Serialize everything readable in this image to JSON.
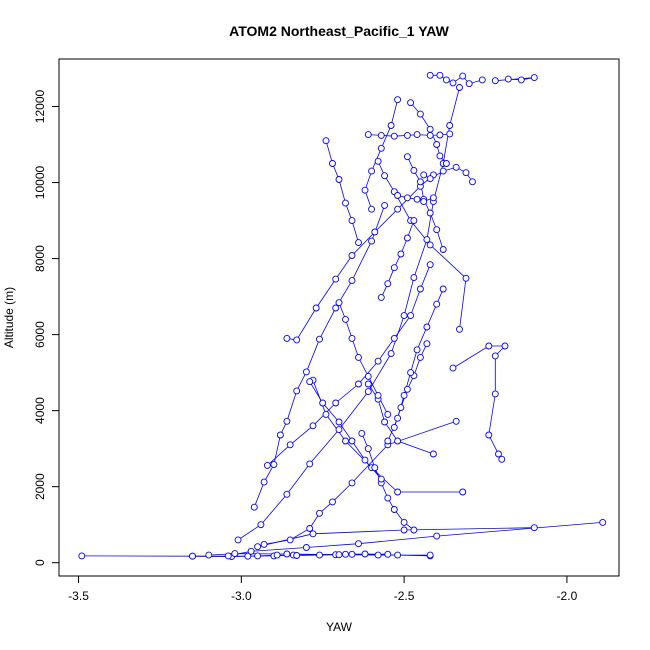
{
  "chart_data": {
    "type": "scatter",
    "title": "ATOM2 Northeast_Pacific_1 YAW",
    "xlabel": "YAW",
    "ylabel": "Altitude (m)",
    "xlim": [
      -3.56,
      -1.84
    ],
    "ylim": [
      -350,
      13250
    ],
    "x_ticks": [
      -3.5,
      -3.0,
      -2.5,
      -2.0
    ],
    "x_tick_labels": [
      "-3.5",
      "-3.0",
      "-2.5",
      "-2.0"
    ],
    "y_ticks": [
      0,
      2000,
      4000,
      6000,
      8000,
      10000,
      12000
    ],
    "y_tick_labels": [
      "0",
      "2000",
      "4000",
      "6000",
      "8000",
      "10000",
      "12000"
    ],
    "grid": false,
    "legend": "none",
    "series_color": "#0000ff",
    "series": [
      {
        "x": [
          -3.49,
          -3.15,
          -2.98,
          -2.9,
          -2.84,
          -2.66,
          -2.52,
          -2.42
        ],
        "y": [
          180,
          170,
          170,
          180,
          200,
          220,
          200,
          180
        ]
      },
      {
        "x": [
          -3.15,
          -3.03,
          -2.95,
          -2.89,
          -2.83,
          -2.76,
          -2.71,
          -2.68,
          -2.62,
          -2.55
        ],
        "y": [
          170,
          160,
          180,
          200,
          190,
          200,
          210,
          220,
          230,
          220
        ]
      },
      {
        "x": [
          -2.42,
          -2.58,
          -2.7,
          -2.86,
          -3.02,
          -3.1
        ],
        "y": [
          200,
          200,
          210,
          230,
          240,
          200
        ]
      },
      {
        "x": [
          -3.01,
          -2.94,
          -2.86,
          -2.79,
          -2.7,
          -2.61,
          -2.54,
          -2.5,
          -2.47,
          -2.43,
          -2.41,
          -2.38,
          -2.36,
          -2.33
        ],
        "y": [
          600,
          1000,
          1800,
          2600,
          3500,
          4500,
          5500,
          6500,
          7500,
          8500,
          9500,
          10500,
          11500,
          12500
        ]
      },
      {
        "x": [
          -1.89,
          -2.4,
          -2.64,
          -2.8,
          -2.97,
          -3.04
        ],
        "y": [
          1060,
          700,
          500,
          400,
          300,
          180
        ]
      },
      {
        "x": [
          -2.1,
          -2.5,
          -2.78,
          -2.95
        ],
        "y": [
          920,
          860,
          760,
          420
        ]
      },
      {
        "x": [
          -2.41,
          -2.52,
          -2.56,
          -2.58,
          -2.61
        ],
        "y": [
          2860,
          3200,
          3700,
          4300,
          4700
        ]
      },
      {
        "x": [
          -2.2,
          -2.21,
          -2.24,
          -2.22,
          -2.22,
          -2.19,
          -2.24,
          -2.35
        ],
        "y": [
          2720,
          2860,
          3360,
          4440,
          5440,
          5700,
          5700,
          5120
        ]
      },
      {
        "x": [
          -2.33,
          -2.31,
          -2.42,
          -2.48,
          -2.53,
          -2.56,
          -2.58
        ],
        "y": [
          6140,
          7480,
          8360,
          9000,
          9760,
          10180,
          10560
        ]
      },
      {
        "x": [
          -2.32,
          -2.52,
          -2.6,
          -2.68,
          -2.74,
          -2.78
        ],
        "y": [
          1860,
          1860,
          2500,
          3200,
          3900,
          4800
        ]
      },
      {
        "x": [
          -2.34,
          -2.55,
          -2.66,
          -2.72,
          -2.76,
          -2.79,
          -2.85,
          -2.93
        ],
        "y": [
          3720,
          3100,
          2100,
          1600,
          1300,
          900,
          600,
          480
        ]
      },
      {
        "x": [
          -2.96,
          -2.93,
          -2.9,
          -2.88,
          -2.86,
          -2.83,
          -2.8,
          -2.76,
          -2.71,
          -2.66,
          -2.6,
          -2.56
        ],
        "y": [
          1460,
          2120,
          2580,
          3360,
          3720,
          4520,
          5020,
          5880,
          6700,
          7420,
          8460,
          9400
        ]
      },
      {
        "x": [
          -2.92,
          -2.85,
          -2.78,
          -2.71,
          -2.64,
          -2.58,
          -2.53,
          -2.48,
          -2.45,
          -2.42
        ],
        "y": [
          2560,
          3100,
          3600,
          4200,
          4700,
          5300,
          5900,
          6500,
          7200,
          7840
        ]
      },
      {
        "x": [
          -2.86,
          -2.83,
          -2.77,
          -2.71,
          -2.66,
          -2.59,
          -2.52,
          -2.45,
          -2.41
        ],
        "y": [
          5900,
          5860,
          6700,
          7460,
          8080,
          8700,
          9300,
          9900,
          10200
        ]
      },
      {
        "x": [
          -2.64,
          -2.66,
          -2.68,
          -2.7,
          -2.72,
          -2.74
        ],
        "y": [
          8420,
          9000,
          9460,
          10080,
          10500,
          11100
        ]
      },
      {
        "x": [
          -2.61,
          -2.57,
          -2.53,
          -2.49,
          -2.46,
          -2.42,
          -2.39,
          -2.36
        ],
        "y": [
          11260,
          11240,
          11220,
          11240,
          11260,
          11240,
          11250,
          11280
        ]
      },
      {
        "x": [
          -2.52,
          -2.54,
          -2.57,
          -2.6,
          -2.62,
          -2.6
        ],
        "y": [
          12180,
          11500,
          10900,
          10300,
          9800,
          9300
        ]
      },
      {
        "x": [
          -2.42,
          -2.39,
          -2.37,
          -2.35,
          -2.32,
          -2.3,
          -2.26
        ],
        "y": [
          12820,
          12820,
          12700,
          12620,
          12800,
          12600,
          12700
        ]
      },
      {
        "x": [
          -2.18,
          -2.14,
          -2.1,
          -2.22
        ],
        "y": [
          12720,
          12700,
          12760,
          12680
        ]
      },
      {
        "x": [
          -2.44,
          -2.42,
          -2.38,
          -2.34,
          -2.31,
          -2.29
        ],
        "y": [
          10200,
          10100,
          10300,
          10400,
          10260,
          10020
        ]
      },
      {
        "x": [
          -2.49,
          -2.47,
          -2.45,
          -2.44,
          -2.42,
          -2.4,
          -2.38
        ],
        "y": [
          10680,
          10320,
          10020,
          9560,
          9200,
          8760,
          8240
        ]
      },
      {
        "x": [
          -2.43,
          -2.45,
          -2.47,
          -2.49,
          -2.51,
          -2.53
        ],
        "y": [
          5760,
          5400,
          4920,
          4560,
          4080,
          3560
        ]
      },
      {
        "x": [
          -2.38,
          -2.4,
          -2.43,
          -2.46,
          -2.48,
          -2.5,
          -2.52,
          -2.55
        ],
        "y": [
          7200,
          6800,
          6200,
          5600,
          5000,
          4400,
          3800,
          3200
        ]
      },
      {
        "x": [
          -2.63,
          -2.61,
          -2.59,
          -2.57,
          -2.55,
          -2.53,
          -2.5,
          -2.47
        ],
        "y": [
          3400,
          3000,
          2500,
          2100,
          1700,
          1400,
          1060,
          860
        ]
      },
      {
        "x": [
          -2.79,
          -2.75,
          -2.7,
          -2.66,
          -2.62,
          -2.57
        ],
        "y": [
          4760,
          4200,
          3700,
          3200,
          2700,
          2200
        ]
      },
      {
        "x": [
          -2.7,
          -2.68,
          -2.66,
          -2.64,
          -2.61,
          -2.58,
          -2.55
        ],
        "y": [
          6840,
          6400,
          5900,
          5400,
          4900,
          4400,
          3900
        ]
      },
      {
        "x": [
          -2.57,
          -2.55,
          -2.53,
          -2.51,
          -2.49,
          -2.47
        ],
        "y": [
          6980,
          7340,
          7760,
          8120,
          8540,
          9000
        ]
      },
      {
        "x": [
          -2.41,
          -2.44,
          -2.46,
          -2.49,
          -2.52
        ],
        "y": [
          9600,
          9500,
          9560,
          9600,
          9660
        ]
      },
      {
        "x": [
          -2.48,
          -2.45,
          -2.42,
          -2.4,
          -2.39,
          -2.37
        ],
        "y": [
          12100,
          11800,
          11400,
          11000,
          10700,
          10500
        ]
      }
    ]
  }
}
